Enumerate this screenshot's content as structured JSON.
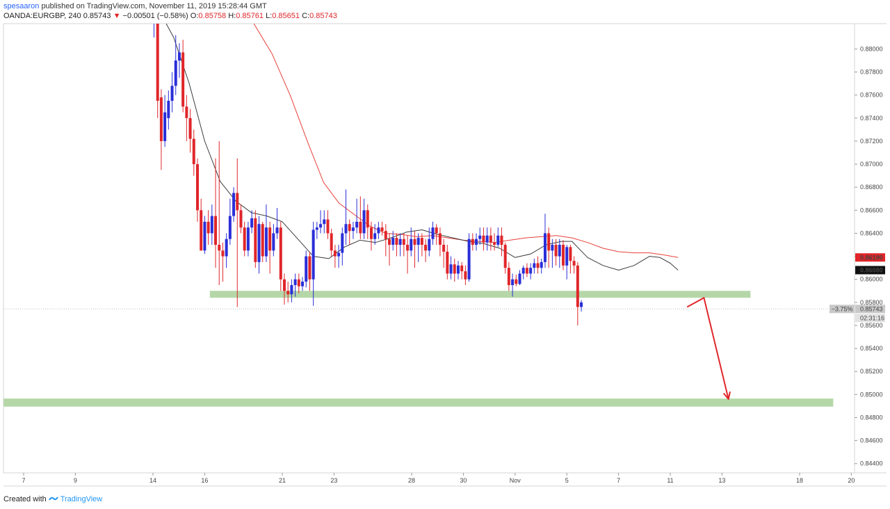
{
  "header": {
    "author": "spesaaron",
    "published_text": "published on TradingView.com, November 11, 2019 15:28:44 GMT",
    "symbol": "OANDA:EURGBP, 240",
    "last": "0.85743",
    "change": "−0.00501 (−0.58%)",
    "o_label": "O:",
    "o_value": "0.85758",
    "h_label": "H:",
    "h_value": "0.85761",
    "l_label": "L:",
    "l_value": "0.85651",
    "c_label": "C:",
    "c_value": "0.85743"
  },
  "footer": {
    "created_with": "Created with",
    "brand": "TradingView"
  },
  "colors": {
    "up_candle": "#2a2ed8",
    "down_candle": "#e0262a",
    "sma_slow": "#e8413a",
    "sma_fast": "#3b3b3b",
    "zone": "#b5d7a8",
    "arrow": "#e0262a",
    "price_badge_red": "#e0262a",
    "price_badge_black": "#111111",
    "current_badge": "#c9c9c9"
  },
  "chart_data": {
    "type": "candlestick",
    "title": "",
    "ylim": [
      0.8432,
      0.8822
    ],
    "y_ticks": [
      "0.88000",
      "0.87800",
      "0.87600",
      "0.87400",
      "0.87200",
      "0.87000",
      "0.86800",
      "0.86600",
      "0.86400",
      "0.86200",
      "0.86000",
      "0.85800",
      "0.85600",
      "0.85400",
      "0.85200",
      "0.85000",
      "0.84800",
      "0.84600",
      "0.84400"
    ],
    "x_ticks": [
      {
        "label": "7",
        "x": 0
      },
      {
        "label": "9",
        "x": 2
      },
      {
        "label": "14",
        "x": 5
      },
      {
        "label": "16",
        "x": 7
      },
      {
        "label": "21",
        "x": 10
      },
      {
        "label": "23",
        "x": 12
      },
      {
        "label": "28",
        "x": 15
      },
      {
        "label": "30",
        "x": 17
      },
      {
        "label": "Nov",
        "x": 19
      },
      {
        "label": "5",
        "x": 21
      },
      {
        "label": "7",
        "x": 23
      },
      {
        "label": "11",
        "x": 25
      },
      {
        "label": "13",
        "x": 27
      },
      {
        "label": "18",
        "x": 30
      },
      {
        "label": "20",
        "x": 32
      }
    ],
    "price_labels": [
      {
        "text": "0.86190",
        "value": 0.8619,
        "style": "red"
      },
      {
        "text": "0.86080",
        "value": 0.8608,
        "style": "black"
      },
      {
        "text": "0.85743",
        "value": 0.85743,
        "style": "current"
      }
    ],
    "current_change": "−3.75%",
    "countdown": "02:31:16",
    "current_price": 0.85743,
    "zones": [
      {
        "x1": 7.2,
        "x2": 28.1,
        "y1": 0.859,
        "y2": 0.8584
      },
      {
        "x1": -1,
        "x2": 31.3,
        "y1": 0.84965,
        "y2": 0.84895
      }
    ],
    "projection_arrow": [
      [
        25.65,
        0.8576
      ],
      [
        26.3,
        0.8584
      ],
      [
        27.25,
        0.8496
      ]
    ],
    "sma_fast": [
      [
        5.2,
        0.8835
      ],
      [
        5.8,
        0.881
      ],
      [
        6.4,
        0.877
      ],
      [
        7.0,
        0.872
      ],
      [
        7.6,
        0.8685
      ],
      [
        8.2,
        0.8668
      ],
      [
        8.8,
        0.8658
      ],
      [
        9.4,
        0.8655
      ],
      [
        10.0,
        0.865
      ],
      [
        10.6,
        0.8635
      ],
      [
        11.2,
        0.862
      ],
      [
        11.8,
        0.8618
      ],
      [
        12.4,
        0.8628
      ],
      [
        13.0,
        0.8634
      ],
      [
        13.6,
        0.8632
      ],
      [
        14.2,
        0.8636
      ],
      [
        14.8,
        0.8641
      ],
      [
        15.4,
        0.8643
      ],
      [
        16.0,
        0.8639
      ],
      [
        16.6,
        0.8636
      ],
      [
        17.2,
        0.8633
      ],
      [
        17.8,
        0.8631
      ],
      [
        18.4,
        0.8627
      ],
      [
        19.0,
        0.8619
      ],
      [
        19.6,
        0.8622
      ],
      [
        20.2,
        0.863
      ],
      [
        20.8,
        0.8633
      ],
      [
        21.2,
        0.8633
      ],
      [
        21.8,
        0.8619
      ],
      [
        22.4,
        0.8612
      ],
      [
        23.0,
        0.8608
      ],
      [
        23.6,
        0.8612
      ],
      [
        24.2,
        0.862
      ],
      [
        24.6,
        0.8619
      ],
      [
        25.0,
        0.8614
      ],
      [
        25.3,
        0.8608
      ]
    ],
    "sma_slow": [
      [
        8.9,
        0.8822
      ],
      [
        9.6,
        0.8796
      ],
      [
        10.3,
        0.876
      ],
      [
        11.0,
        0.8718
      ],
      [
        11.6,
        0.8684
      ],
      [
        12.2,
        0.8666
      ],
      [
        12.8,
        0.8656
      ],
      [
        13.4,
        0.8646
      ],
      [
        14.0,
        0.864
      ],
      [
        14.6,
        0.8639
      ],
      [
        15.2,
        0.8637
      ],
      [
        15.8,
        0.8638
      ],
      [
        16.4,
        0.8636
      ],
      [
        17.0,
        0.8634
      ],
      [
        17.6,
        0.8633
      ],
      [
        18.2,
        0.8632
      ],
      [
        18.8,
        0.8634
      ],
      [
        19.4,
        0.8636
      ],
      [
        20.0,
        0.8637
      ],
      [
        20.6,
        0.8638
      ],
      [
        21.2,
        0.8636
      ],
      [
        21.8,
        0.8632
      ],
      [
        22.4,
        0.8627
      ],
      [
        23.0,
        0.8624
      ],
      [
        23.6,
        0.8623
      ],
      [
        24.2,
        0.8623
      ],
      [
        24.8,
        0.8621
      ],
      [
        25.3,
        0.8619
      ]
    ],
    "candles": [
      [
        5.04,
        0.8829,
        0.8829,
        0.8835,
        0.881
      ],
      [
        5.18,
        0.8829,
        0.8755,
        0.8831,
        0.874
      ],
      [
        5.32,
        0.8758,
        0.872,
        0.8765,
        0.8695
      ],
      [
        5.46,
        0.872,
        0.8745,
        0.876,
        0.8715
      ],
      [
        5.6,
        0.874,
        0.8755,
        0.8764,
        0.873
      ],
      [
        5.74,
        0.8755,
        0.8768,
        0.878,
        0.8745
      ],
      [
        5.88,
        0.8768,
        0.879,
        0.8812,
        0.876
      ],
      [
        6.02,
        0.879,
        0.8797,
        0.8805,
        0.8775
      ],
      [
        6.16,
        0.8797,
        0.875,
        0.8808,
        0.8745
      ],
      [
        6.3,
        0.875,
        0.874,
        0.876,
        0.872
      ],
      [
        6.44,
        0.874,
        0.8722,
        0.8748,
        0.871
      ],
      [
        6.58,
        0.8722,
        0.87,
        0.873,
        0.869
      ],
      [
        6.72,
        0.87,
        0.866,
        0.8705,
        0.865
      ],
      [
        6.86,
        0.866,
        0.8625,
        0.867,
        0.8625
      ],
      [
        7.0,
        0.8625,
        0.865,
        0.8655,
        0.8622
      ],
      [
        7.14,
        0.865,
        0.864,
        0.866,
        0.863
      ],
      [
        7.28,
        0.864,
        0.8655,
        0.8665,
        0.863
      ],
      [
        7.42,
        0.8655,
        0.863,
        0.8705,
        0.861
      ],
      [
        7.56,
        0.863,
        0.8625,
        0.872,
        0.8595
      ],
      [
        7.7,
        0.8625,
        0.862,
        0.8632,
        0.8598
      ],
      [
        7.84,
        0.862,
        0.8635,
        0.864,
        0.861
      ],
      [
        7.98,
        0.8635,
        0.8655,
        0.867,
        0.863
      ],
      [
        8.12,
        0.8655,
        0.8675,
        0.868,
        0.865
      ],
      [
        8.26,
        0.8675,
        0.866,
        0.8705,
        0.8576
      ],
      [
        8.4,
        0.866,
        0.8645,
        0.8665,
        0.864
      ],
      [
        8.54,
        0.8645,
        0.8625,
        0.865,
        0.862
      ],
      [
        8.68,
        0.8625,
        0.8645,
        0.865,
        0.862
      ],
      [
        8.82,
        0.8645,
        0.8653,
        0.866,
        0.864
      ],
      [
        8.96,
        0.8653,
        0.8615,
        0.866,
        0.861
      ],
      [
        9.1,
        0.8615,
        0.8648,
        0.8655,
        0.8605
      ],
      [
        9.24,
        0.8648,
        0.862,
        0.865,
        0.8615
      ],
      [
        9.38,
        0.862,
        0.8645,
        0.8665,
        0.8615
      ],
      [
        9.52,
        0.8645,
        0.8625,
        0.865,
        0.8605
      ],
      [
        9.66,
        0.8625,
        0.864,
        0.8648,
        0.862
      ],
      [
        9.8,
        0.864,
        0.8645,
        0.8662,
        0.8635
      ],
      [
        9.94,
        0.8645,
        0.86,
        0.865,
        0.859
      ],
      [
        10.08,
        0.86,
        0.859,
        0.8605,
        0.8578
      ],
      [
        10.22,
        0.859,
        0.8587,
        0.8598,
        0.858
      ],
      [
        10.36,
        0.8587,
        0.8595,
        0.86,
        0.858
      ],
      [
        10.5,
        0.8595,
        0.86,
        0.8605,
        0.8585
      ],
      [
        10.64,
        0.86,
        0.8594,
        0.8605,
        0.8588
      ],
      [
        10.78,
        0.8594,
        0.8598,
        0.8602,
        0.859
      ],
      [
        10.92,
        0.8598,
        0.862,
        0.8625,
        0.8593
      ],
      [
        11.06,
        0.862,
        0.86,
        0.8624,
        0.859
      ],
      [
        11.2,
        0.86,
        0.8643,
        0.865,
        0.8577
      ],
      [
        11.34,
        0.8643,
        0.8645,
        0.865,
        0.8635
      ],
      [
        11.48,
        0.8645,
        0.8648,
        0.866,
        0.864
      ],
      [
        11.62,
        0.8648,
        0.8652,
        0.866,
        0.864
      ],
      [
        11.76,
        0.8652,
        0.864,
        0.866,
        0.8635
      ],
      [
        11.9,
        0.864,
        0.8625,
        0.8644,
        0.862
      ],
      [
        12.04,
        0.8625,
        0.862,
        0.863,
        0.861
      ],
      [
        12.18,
        0.862,
        0.8623,
        0.863,
        0.861
      ],
      [
        12.32,
        0.8623,
        0.864,
        0.8645,
        0.8612
      ],
      [
        12.46,
        0.864,
        0.8648,
        0.8678,
        0.863
      ],
      [
        12.6,
        0.8648,
        0.8642,
        0.8652,
        0.863
      ],
      [
        12.74,
        0.8642,
        0.8645,
        0.865,
        0.8635
      ],
      [
        12.88,
        0.8645,
        0.865,
        0.867,
        0.864
      ],
      [
        13.02,
        0.865,
        0.864,
        0.8672,
        0.8635
      ],
      [
        13.16,
        0.864,
        0.866,
        0.867,
        0.8635
      ],
      [
        13.3,
        0.866,
        0.8645,
        0.8665,
        0.8635
      ],
      [
        13.44,
        0.8645,
        0.8635,
        0.865,
        0.8625
      ],
      [
        13.58,
        0.8635,
        0.864,
        0.8648,
        0.863
      ],
      [
        13.72,
        0.864,
        0.8645,
        0.865,
        0.8635
      ],
      [
        13.86,
        0.8645,
        0.8642,
        0.865,
        0.8638
      ],
      [
        14.0,
        0.8642,
        0.8635,
        0.8648,
        0.862
      ],
      [
        14.14,
        0.8635,
        0.863,
        0.864,
        0.8612
      ],
      [
        14.28,
        0.863,
        0.8636,
        0.8642,
        0.8625
      ],
      [
        14.42,
        0.8636,
        0.863,
        0.864,
        0.862
      ],
      [
        14.56,
        0.863,
        0.8635,
        0.864,
        0.862
      ],
      [
        14.7,
        0.8635,
        0.863,
        0.864,
        0.862
      ],
      [
        14.84,
        0.863,
        0.8625,
        0.8638,
        0.8605
      ],
      [
        14.98,
        0.8625,
        0.8635,
        0.8645,
        0.862
      ],
      [
        15.12,
        0.8635,
        0.863,
        0.8642,
        0.861
      ],
      [
        15.26,
        0.863,
        0.8636,
        0.864,
        0.8615
      ],
      [
        15.4,
        0.8636,
        0.863,
        0.864,
        0.862
      ],
      [
        15.54,
        0.863,
        0.8625,
        0.8635,
        0.8615
      ],
      [
        15.68,
        0.8625,
        0.8635,
        0.8645,
        0.862
      ],
      [
        15.82,
        0.8635,
        0.8645,
        0.865,
        0.863
      ],
      [
        15.96,
        0.8645,
        0.864,
        0.8648,
        0.863
      ],
      [
        16.1,
        0.864,
        0.863,
        0.8645,
        0.862
      ],
      [
        16.24,
        0.863,
        0.8624,
        0.8635,
        0.861
      ],
      [
        16.38,
        0.8624,
        0.8605,
        0.863,
        0.86
      ],
      [
        16.52,
        0.8605,
        0.8613,
        0.862,
        0.86
      ],
      [
        16.66,
        0.8613,
        0.8605,
        0.8618,
        0.8598
      ],
      [
        16.8,
        0.8605,
        0.8612,
        0.8616,
        0.86
      ],
      [
        16.94,
        0.8612,
        0.8607,
        0.8615,
        0.86
      ],
      [
        17.08,
        0.8607,
        0.86,
        0.8612,
        0.8595
      ],
      [
        17.22,
        0.86,
        0.8635,
        0.864,
        0.8598
      ],
      [
        17.36,
        0.8635,
        0.863,
        0.864,
        0.8625
      ],
      [
        17.5,
        0.863,
        0.8635,
        0.864,
        0.8625
      ],
      [
        17.64,
        0.8635,
        0.8638,
        0.8645,
        0.863
      ],
      [
        17.78,
        0.8638,
        0.8632,
        0.8645,
        0.8625
      ],
      [
        17.92,
        0.8632,
        0.8638,
        0.8645,
        0.8625
      ],
      [
        18.06,
        0.8638,
        0.8632,
        0.8645,
        0.8625
      ],
      [
        18.2,
        0.8632,
        0.863,
        0.864,
        0.8625
      ],
      [
        18.34,
        0.863,
        0.8638,
        0.8645,
        0.8628
      ],
      [
        18.48,
        0.8638,
        0.863,
        0.8645,
        0.862
      ],
      [
        18.62,
        0.863,
        0.861,
        0.8632,
        0.8605
      ],
      [
        18.76,
        0.861,
        0.8595,
        0.8615,
        0.859
      ],
      [
        18.9,
        0.8595,
        0.86,
        0.8605,
        0.8585
      ],
      [
        19.04,
        0.86,
        0.8596,
        0.8604,
        0.8594
      ],
      [
        19.18,
        0.8596,
        0.8605,
        0.8608,
        0.8595
      ],
      [
        19.32,
        0.8605,
        0.861,
        0.8612,
        0.86
      ],
      [
        19.46,
        0.861,
        0.8605,
        0.8614,
        0.8602
      ],
      [
        19.6,
        0.8605,
        0.861,
        0.8614,
        0.86
      ],
      [
        19.74,
        0.861,
        0.8614,
        0.8618,
        0.8605
      ],
      [
        19.88,
        0.8614,
        0.861,
        0.862,
        0.8605
      ],
      [
        20.02,
        0.861,
        0.8615,
        0.8618,
        0.8605
      ],
      [
        20.16,
        0.8615,
        0.864,
        0.8657,
        0.861
      ],
      [
        20.3,
        0.864,
        0.8625,
        0.8645,
        0.861
      ],
      [
        20.44,
        0.8625,
        0.863,
        0.8635,
        0.861
      ],
      [
        20.58,
        0.863,
        0.862,
        0.8635,
        0.8612
      ],
      [
        20.72,
        0.862,
        0.863,
        0.8635,
        0.861
      ],
      [
        20.86,
        0.863,
        0.8612,
        0.8634,
        0.8608
      ],
      [
        21.0,
        0.8612,
        0.8628,
        0.863,
        0.86
      ],
      [
        21.14,
        0.8628,
        0.8616,
        0.863,
        0.8605
      ],
      [
        21.28,
        0.8616,
        0.8612,
        0.862,
        0.8605
      ],
      [
        21.42,
        0.8612,
        0.8576,
        0.8615,
        0.856
      ],
      [
        21.56,
        0.8576,
        0.858,
        0.8582,
        0.8572
      ]
    ]
  }
}
